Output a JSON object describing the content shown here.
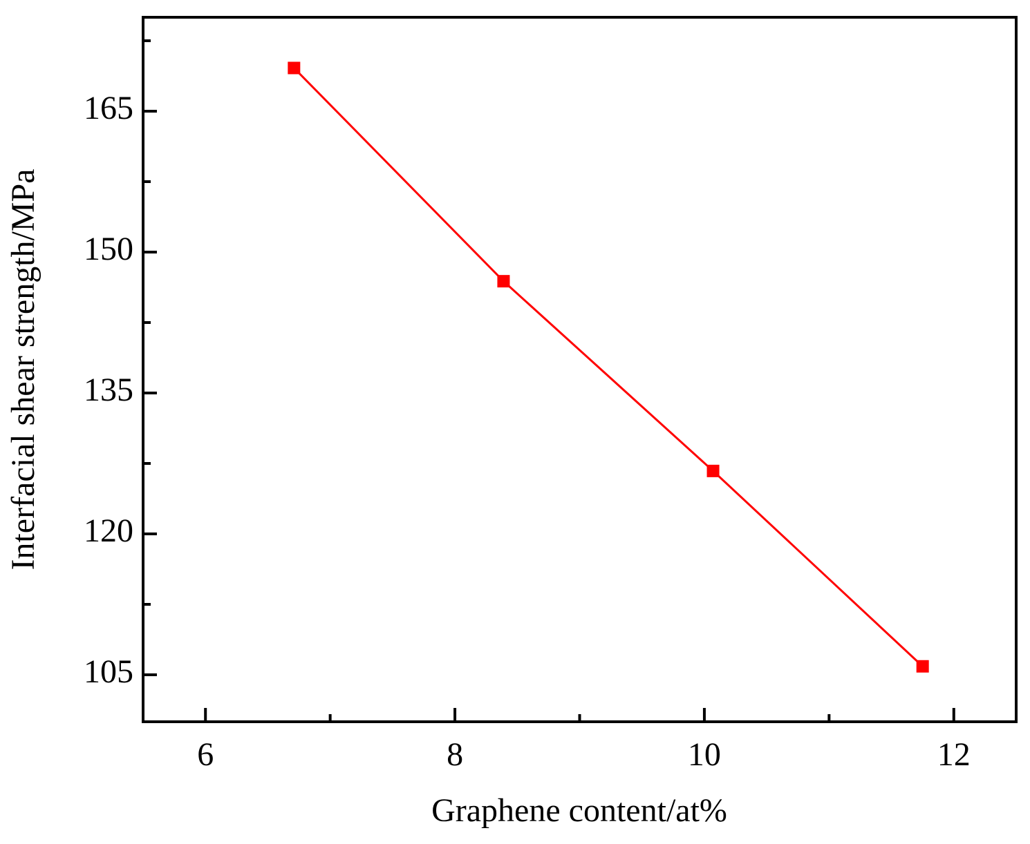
{
  "chart_data": {
    "type": "line",
    "xlabel": "Graphene content/at%",
    "ylabel": "Interfacial shear strength/MPa",
    "x": [
      6.71,
      8.39,
      10.07,
      11.75
    ],
    "series": [
      {
        "color": "#ff0000",
        "values": [
          169.6,
          146.9,
          126.7,
          105.9
        ]
      }
    ],
    "xlim": [
      5.5,
      12.5
    ],
    "xticks": [
      6,
      8,
      10,
      12
    ],
    "xminorticks": [
      7,
      9,
      11
    ],
    "ylim": [
      100,
      175
    ],
    "yticks": [
      105,
      120,
      135,
      150,
      165
    ],
    "yminorticks": [
      112.5,
      127.5,
      142.5,
      157.5,
      172.5
    ],
    "grid": false
  }
}
